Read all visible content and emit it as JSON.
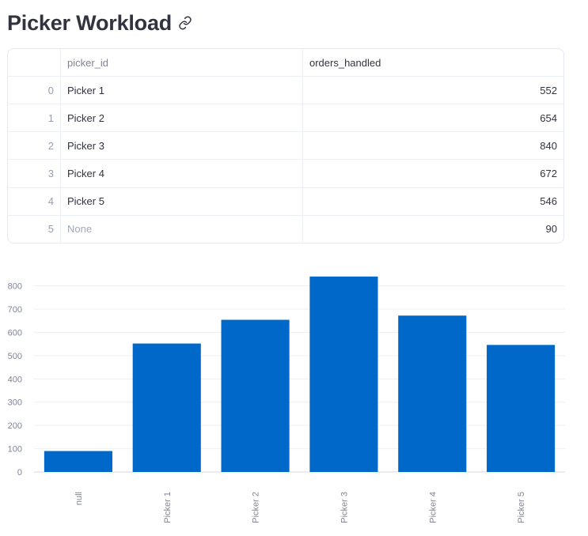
{
  "header": {
    "title": "Picker Workload",
    "link_icon": "link-icon"
  },
  "table": {
    "columns": [
      "",
      "picker_id",
      "orders_handled"
    ],
    "rows": [
      {
        "index": "0",
        "picker_id": "Picker 1",
        "orders_handled": "552"
      },
      {
        "index": "1",
        "picker_id": "Picker 2",
        "orders_handled": "654"
      },
      {
        "index": "2",
        "picker_id": "Picker 3",
        "orders_handled": "840"
      },
      {
        "index": "3",
        "picker_id": "Picker 4",
        "orders_handled": "672"
      },
      {
        "index": "4",
        "picker_id": "Picker 5",
        "orders_handled": "546"
      },
      {
        "index": "5",
        "picker_id": "None",
        "orders_handled": "90"
      }
    ]
  },
  "chart_data": {
    "type": "bar",
    "categories": [
      "null",
      "Picker 1",
      "Picker 2",
      "Picker 3",
      "Picker 4",
      "Picker 5"
    ],
    "values": [
      90,
      552,
      654,
      840,
      672,
      546
    ],
    "yticks": [
      0,
      100,
      200,
      300,
      400,
      500,
      600,
      700,
      800
    ],
    "ylim": [
      0,
      880
    ],
    "grid": true,
    "bar_color": "#0068c9"
  }
}
